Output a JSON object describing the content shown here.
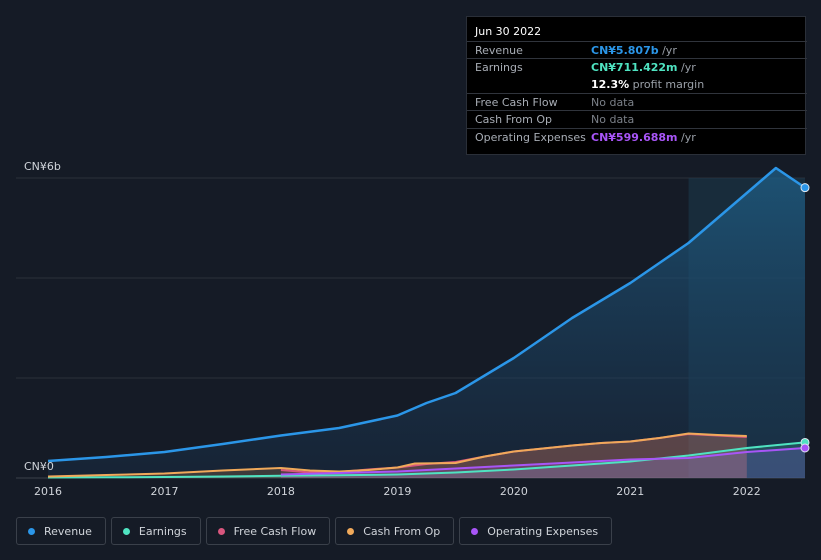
{
  "chart_data": {
    "type": "area",
    "y_top_label": "CN¥6b",
    "y_bottom_label": "CN¥0",
    "ylim": [
      0,
      6000
    ],
    "xlim": [
      2016.0,
      2022.5
    ],
    "x_ticks": [
      2016,
      2017,
      2018,
      2019,
      2020,
      2021,
      2022
    ],
    "x_tick_labels": [
      "2016",
      "2017",
      "2018",
      "2019",
      "2020",
      "2021",
      "2022"
    ],
    "highlight_from": 2021.5,
    "series": [
      {
        "name": "Revenue",
        "color": "#2b96e8",
        "fill": true,
        "x": [
          2016.0,
          2016.5,
          2017.0,
          2017.5,
          2018.0,
          2018.5,
          2019.0,
          2019.25,
          2019.5,
          2019.75,
          2020.0,
          2020.25,
          2020.5,
          2020.75,
          2021.0,
          2021.25,
          2021.5,
          2021.75,
          2022.0,
          2022.25,
          2022.5
        ],
        "values": [
          340,
          420,
          520,
          680,
          850,
          1000,
          1250,
          1500,
          1700,
          2050,
          2400,
          2800,
          3200,
          3550,
          3900,
          4300,
          4700,
          5200,
          5700,
          6200,
          5807
        ]
      },
      {
        "name": "Earnings",
        "color": "#4fe3c1",
        "fill": true,
        "x": [
          2016.0,
          2016.5,
          2017.0,
          2017.5,
          2018.0,
          2018.5,
          2019.0,
          2019.5,
          2020.0,
          2020.5,
          2021.0,
          2021.5,
          2022.0,
          2022.5
        ],
        "values": [
          10,
          15,
          20,
          30,
          45,
          55,
          70,
          110,
          170,
          250,
          330,
          450,
          600,
          711
        ]
      },
      {
        "name": "Free Cash Flow",
        "color": "#d9567e",
        "fill": true,
        "x": [
          2018.0,
          2018.25,
          2018.5,
          2018.75,
          2019.0,
          2019.25,
          2019.5,
          2019.75,
          2020.0,
          2020.25,
          2020.5,
          2020.75,
          2021.0,
          2021.25,
          2021.5,
          2021.75,
          2022.0
        ],
        "values": [
          160,
          110,
          120,
          170,
          210,
          280,
          320,
          430,
          530,
          590,
          650,
          700,
          730,
          800,
          880,
          850,
          820
        ]
      },
      {
        "name": "Cash From Op",
        "color": "#f0a95a",
        "fill": true,
        "x": [
          2016.0,
          2016.5,
          2017.0,
          2017.5,
          2018.0,
          2018.25,
          2018.5,
          2018.75,
          2019.0,
          2019.15,
          2019.5,
          2019.75,
          2020.0,
          2020.25,
          2020.5,
          2020.75,
          2021.0,
          2021.25,
          2021.5,
          2021.75,
          2022.0
        ],
        "values": [
          30,
          60,
          90,
          150,
          200,
          150,
          130,
          160,
          210,
          290,
          300,
          430,
          530,
          590,
          650,
          700,
          730,
          800,
          890,
          860,
          840
        ]
      },
      {
        "name": "Operating Expenses",
        "color": "#a855f7",
        "fill": true,
        "x": [
          2018.0,
          2018.5,
          2019.0,
          2019.5,
          2020.0,
          2020.5,
          2021.0,
          2021.5,
          2022.0,
          2022.5
        ],
        "values": [
          70,
          100,
          130,
          190,
          250,
          310,
          370,
          400,
          520,
          600
        ]
      }
    ]
  },
  "tooltip": {
    "date": "Jun 30 2022",
    "rows": [
      {
        "label": "Revenue",
        "value": "CN¥5.807b",
        "unit": " /yr",
        "color": "#2b96e8"
      },
      {
        "label": "Earnings",
        "value": "CN¥711.422m",
        "unit": " /yr",
        "color": "#4fe3c1"
      },
      {
        "label": "",
        "value": "12.3%",
        "unit": " profit margin",
        "color": "#ffffff"
      },
      {
        "label": "Free Cash Flow",
        "value": "No data",
        "unit": "",
        "color": "#7b8088"
      },
      {
        "label": "Cash From Op",
        "value": "No data",
        "unit": "",
        "color": "#7b8088"
      },
      {
        "label": "Operating Expenses",
        "value": "CN¥599.688m",
        "unit": " /yr",
        "color": "#a855f7"
      }
    ]
  },
  "legend": [
    {
      "label": "Revenue",
      "color": "#2b96e8"
    },
    {
      "label": "Earnings",
      "color": "#4fe3c1"
    },
    {
      "label": "Free Cash Flow",
      "color": "#d9567e"
    },
    {
      "label": "Cash From Op",
      "color": "#f0a95a"
    },
    {
      "label": "Operating Expenses",
      "color": "#a855f7"
    }
  ]
}
